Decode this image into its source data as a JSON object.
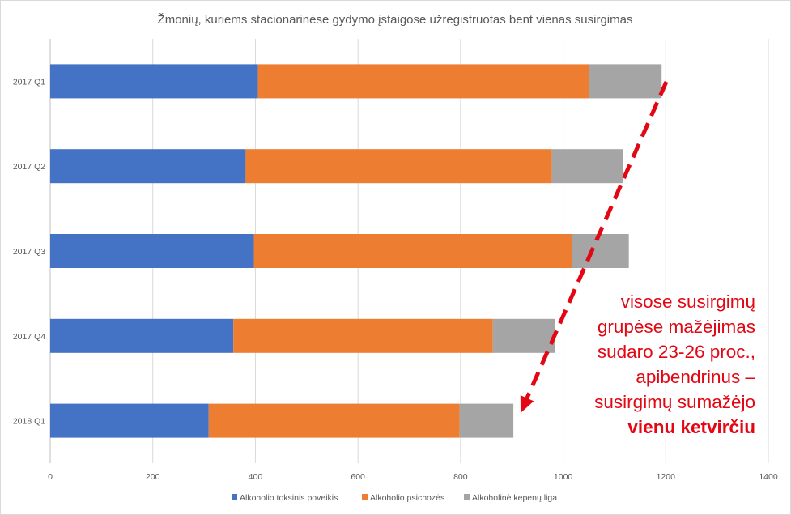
{
  "chart_data": {
    "type": "bar",
    "orientation": "horizontal",
    "stacked": true,
    "title": "Žmonių, kuriems stacionarinėse gydymo įstaigose užregistruotas bent vienas susirgimas",
    "categories": [
      "2017 Q1",
      "2017 Q2",
      "2017 Q3",
      "2017 Q4",
      "2018 Q1"
    ],
    "series": [
      {
        "name": "Alkoholio toksinis poveikis",
        "color": "#4472c4",
        "values": [
          405,
          381,
          397,
          357,
          309
        ]
      },
      {
        "name": "Alkoholio psichozės",
        "color": "#ed7d31",
        "values": [
          646,
          597,
          621,
          506,
          489
        ]
      },
      {
        "name": "Alkoholinė kepenų liga",
        "color": "#a5a5a5",
        "values": [
          141,
          138,
          110,
          121,
          105
        ]
      }
    ],
    "xlim": [
      0,
      1400
    ],
    "xticks": [
      0,
      200,
      400,
      600,
      800,
      1000,
      1200,
      1400
    ],
    "grid": true,
    "legend_position": "bottom",
    "annotation": {
      "lines": [
        "visose susirgimų",
        "grupėse mažėjimas",
        "sudaro 23-26 proc.,",
        "apibendrinus –",
        "susirgimų sumažėjo"
      ],
      "bold_line": "vienu ketvirčiu",
      "color": "#e30613"
    },
    "arrow": {
      "style": "dashed",
      "color": "#e30613"
    }
  }
}
